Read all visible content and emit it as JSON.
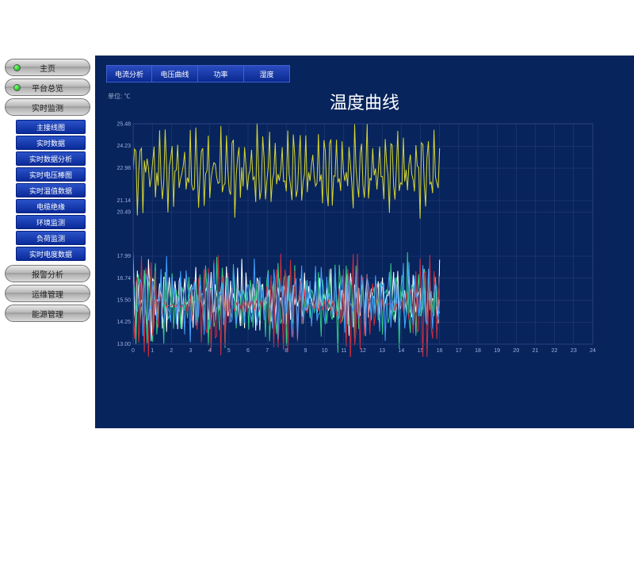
{
  "sidebar": {
    "top": [
      {
        "label": "主页",
        "has_dot": true
      },
      {
        "label": "平台总览",
        "has_dot": true
      },
      {
        "label": "实时监测",
        "has_dot": false
      }
    ],
    "sub": [
      "主接线图",
      "实时数据",
      "实时数据分析",
      "实时电压棒图",
      "实时温值数据",
      "电缆绝缘",
      "环境监测",
      "负荷监测",
      "实时电度数据"
    ],
    "bottom": [
      {
        "label": "报警分析"
      },
      {
        "label": "运维管理"
      },
      {
        "label": "能源管理"
      }
    ]
  },
  "tabs": [
    "电流分析",
    "电压曲线",
    "功率",
    "湿度"
  ],
  "chart": {
    "title": "温度曲线",
    "unit_label": "单位: ℃",
    "background": "#08245c",
    "grid_color": "#2a4080",
    "text_color": "#9db0e0",
    "y_ticks": [
      25.48,
      24.23,
      22.98,
      21.14,
      20.49,
      17.99,
      16.74,
      15.5,
      14.25,
      13.0
    ],
    "y_min": 13.0,
    "y_max": 25.5,
    "x_ticks": [
      0,
      1,
      2,
      3,
      4,
      5,
      6,
      7,
      8,
      9,
      10,
      11,
      12,
      13,
      14,
      15,
      16,
      17,
      18,
      19,
      20,
      21,
      22,
      23,
      24
    ],
    "x_data_end": 16,
    "series": [
      {
        "name": "s1",
        "color": "#d8d830",
        "base": 22.8,
        "amp": 2.2,
        "freq": 11,
        "phase": 0.0
      },
      {
        "name": "s2",
        "color": "#ffffff",
        "base": 15.6,
        "amp": 2.3,
        "freq": 13,
        "phase": 0.9
      },
      {
        "name": "s3",
        "color": "#30d080",
        "base": 15.4,
        "amp": 2.1,
        "freq": 12,
        "phase": 2.1
      },
      {
        "name": "s4",
        "color": "#d03040",
        "base": 15.2,
        "amp": 2.2,
        "freq": 14,
        "phase": 3.4
      },
      {
        "name": "s5",
        "color": "#40a0ff",
        "base": 15.5,
        "amp": 1.9,
        "freq": 10,
        "phase": 1.6
      }
    ]
  }
}
